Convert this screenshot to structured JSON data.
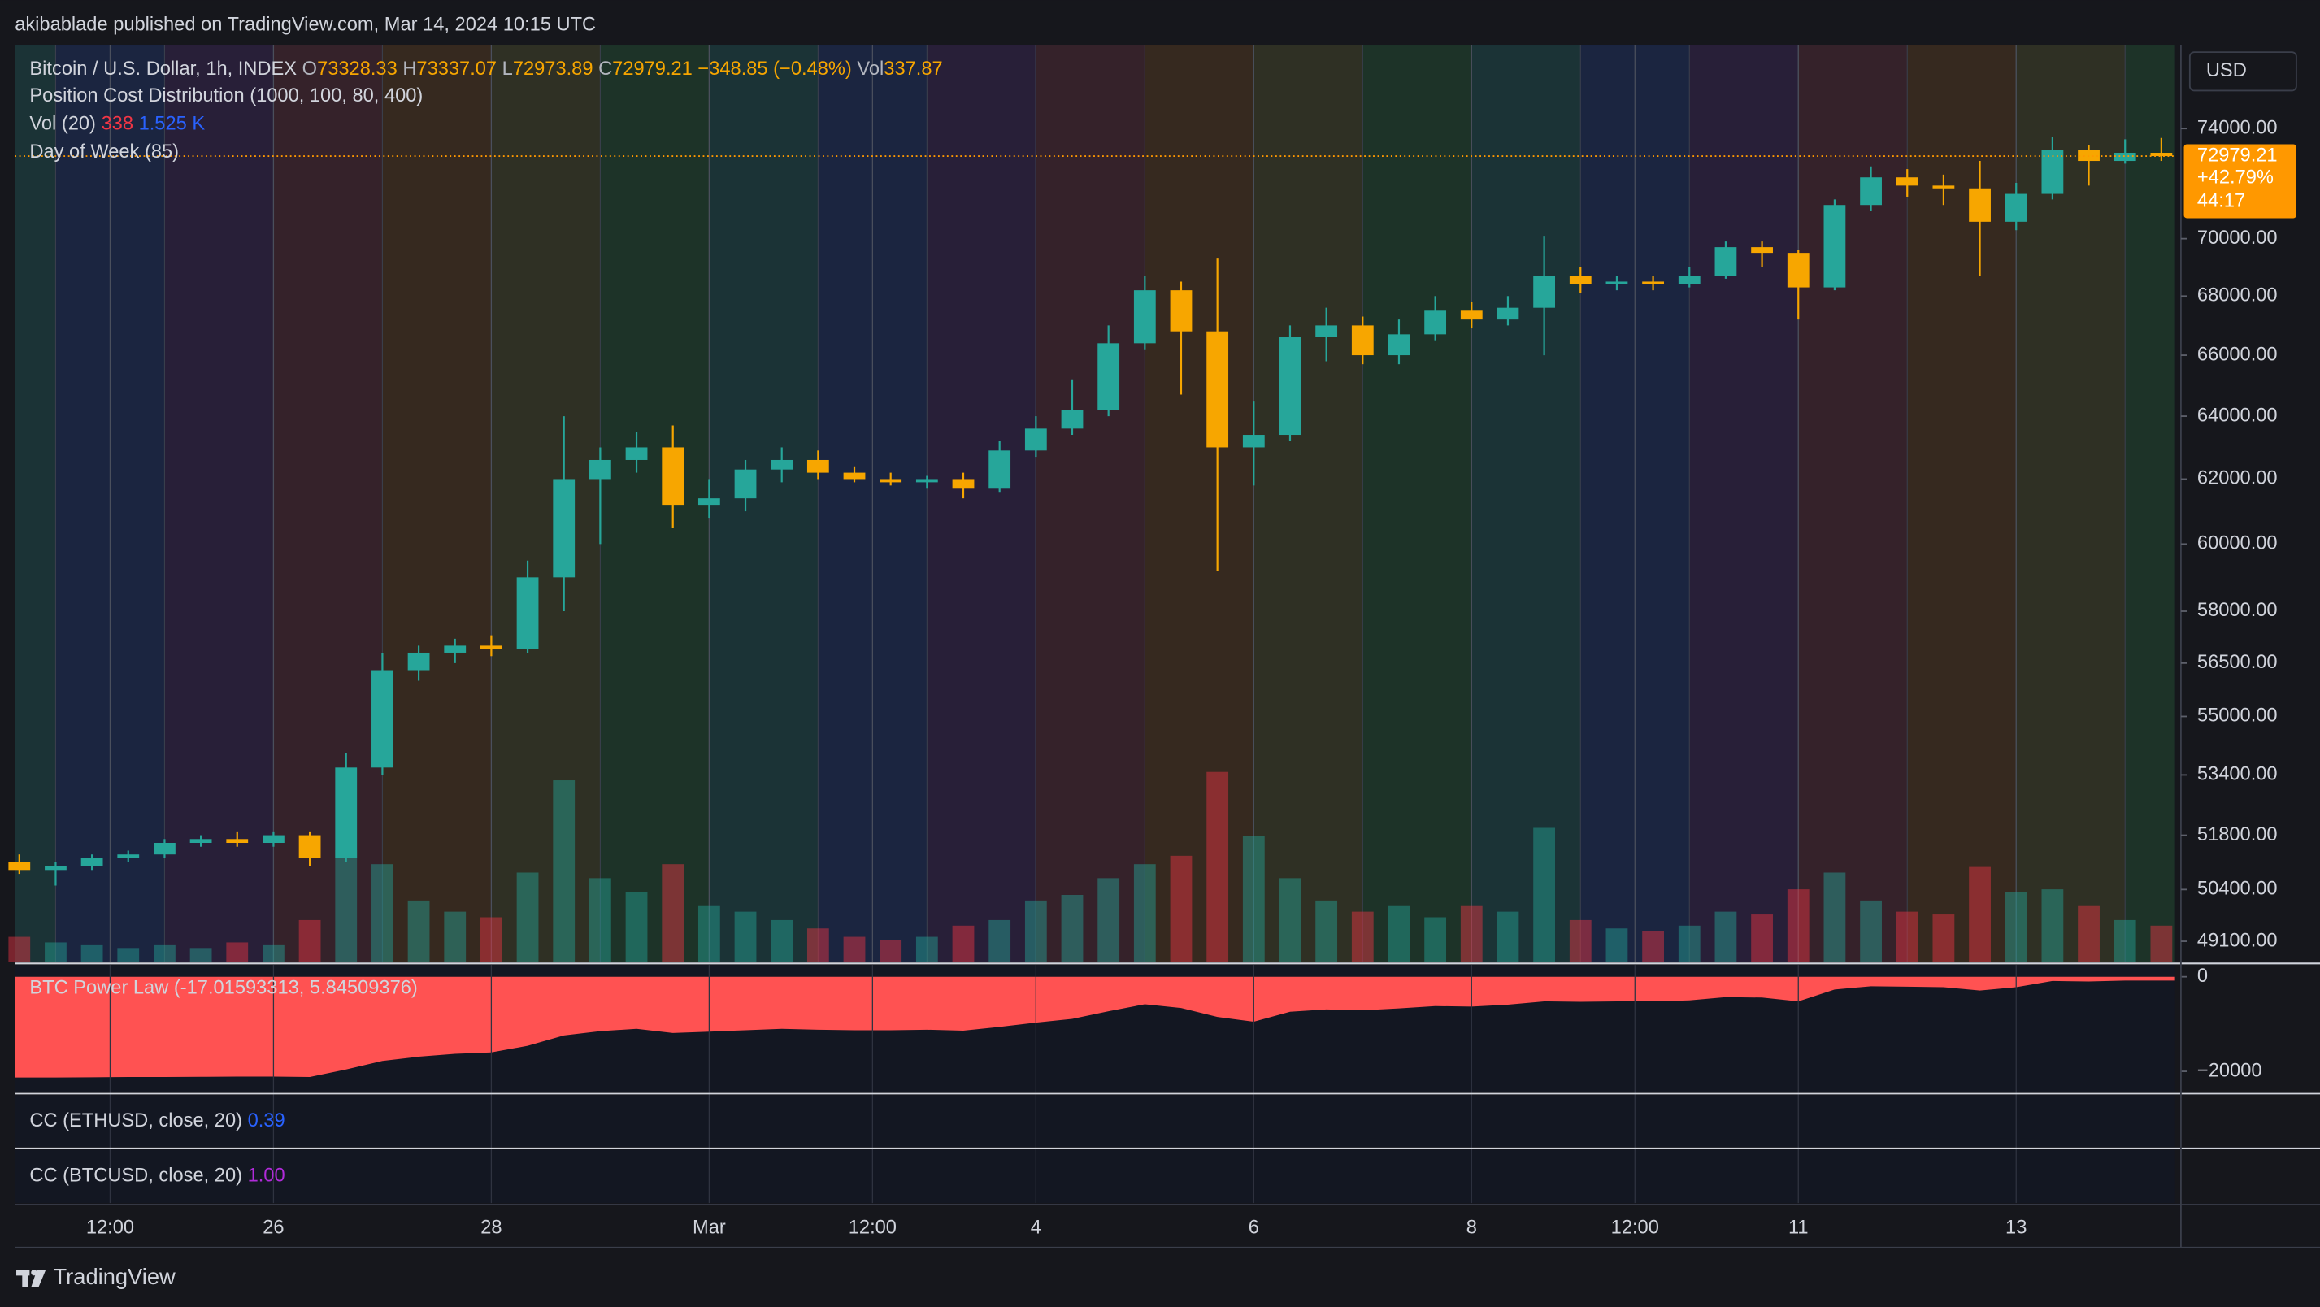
{
  "header": {
    "publisher": "akibablade published on TradingView.com, Mar 14, 2024 10:15 UTC"
  },
  "chart_data": [
    {
      "type": "candlestick",
      "symbol": "Bitcoin / U.S. Dollar, 1h, INDEX",
      "legend": {
        "o_key": "O",
        "o": "73328.33",
        "h_key": "H",
        "h": "73337.07",
        "l_key": "L",
        "l": "72973.89",
        "c_key": "C",
        "c": "72979.21",
        "change": "−348.85 (−0.48%)",
        "vol_key": "Vol",
        "vol": "337.87"
      },
      "indicators": {
        "pcd": "Position Cost Distribution (1000, 100, 80, 400)",
        "vol_name": "Vol (20)",
        "vol_last": "338",
        "vol_ma": "1.525 K",
        "dow": "Day of Week (85)"
      },
      "currency": "USD",
      "x": [
        "02-23 16:00",
        "02-24 00:00",
        "02-24 08:00",
        "02-24 16:00",
        "02-25 00:00",
        "02-25 08:00",
        "02-25 16:00",
        "02-26 00:00",
        "02-26 08:00",
        "02-26 16:00",
        "02-27 00:00",
        "02-27 08:00",
        "02-27 16:00",
        "02-28 00:00",
        "02-28 08:00",
        "02-28 16:00",
        "02-29 00:00",
        "02-29 08:00",
        "02-29 16:00",
        "03-01 00:00",
        "03-01 08:00",
        "03-01 16:00",
        "03-02 00:00",
        "03-02 08:00",
        "03-02 16:00",
        "03-03 00:00",
        "03-03 08:00",
        "03-03 16:00",
        "03-04 00:00",
        "03-04 08:00",
        "03-04 16:00",
        "03-05 00:00",
        "03-05 08:00",
        "03-05 16:00",
        "03-06 00:00",
        "03-06 08:00",
        "03-06 16:00",
        "03-07 00:00",
        "03-07 08:00",
        "03-07 16:00",
        "03-08 00:00",
        "03-08 08:00",
        "03-08 16:00",
        "03-09 00:00",
        "03-09 08:00",
        "03-09 16:00",
        "03-10 00:00",
        "03-10 08:00",
        "03-10 16:00",
        "03-11 00:00",
        "03-11 08:00",
        "03-11 16:00",
        "03-12 00:00",
        "03-12 08:00",
        "03-12 16:00",
        "03-13 00:00",
        "03-13 08:00",
        "03-13 16:00",
        "03-14 00:00",
        "03-14 08:00"
      ],
      "open": [
        51100,
        50900,
        51000,
        51200,
        51300,
        51600,
        51700,
        51600,
        51800,
        51200,
        53600,
        56300,
        56800,
        57000,
        56900,
        59000,
        62000,
        62600,
        63000,
        61200,
        61400,
        62300,
        62600,
        62200,
        62000,
        61900,
        62000,
        61700,
        62900,
        63600,
        64200,
        66400,
        68200,
        66800,
        63000,
        63400,
        66600,
        67000,
        66000,
        66700,
        67500,
        67200,
        67600,
        68700,
        68400,
        68500,
        68400,
        68700,
        69700,
        69500,
        68300,
        71200,
        72200,
        71900,
        71800,
        70600,
        71600,
        73200,
        72800,
        73100
      ],
      "high": [
        51300,
        51100,
        51300,
        51400,
        51700,
        51800,
        51900,
        51900,
        51900,
        54000,
        56800,
        57000,
        57200,
        57300,
        59500,
        64000,
        63000,
        63500,
        63700,
        62000,
        62600,
        63000,
        62900,
        62400,
        62200,
        62100,
        62200,
        63200,
        64000,
        65200,
        67000,
        68700,
        68500,
        69300,
        64500,
        67000,
        67600,
        67300,
        67200,
        68000,
        67800,
        68000,
        70100,
        69000,
        68700,
        68700,
        69000,
        69900,
        69900,
        69600,
        71400,
        72600,
        72500,
        72300,
        72800,
        72000,
        73700,
        73400,
        73600,
        73650
      ],
      "low": [
        50800,
        50500,
        50900,
        51100,
        51200,
        51500,
        51500,
        51500,
        51000,
        51100,
        53400,
        56000,
        56500,
        56700,
        56800,
        58000,
        60000,
        62200,
        60500,
        60800,
        61000,
        61900,
        62000,
        61900,
        61800,
        61700,
        61400,
        61600,
        62700,
        63400,
        64000,
        66200,
        64700,
        59200,
        61800,
        63200,
        65800,
        65700,
        65700,
        66500,
        66900,
        67000,
        66000,
        68100,
        68200,
        68200,
        68300,
        68600,
        69000,
        67200,
        68200,
        71000,
        71500,
        71200,
        68700,
        70300,
        71400,
        71900,
        72700,
        72800
      ],
      "close": [
        50900,
        51000,
        51200,
        51300,
        51600,
        51700,
        51600,
        51800,
        51200,
        53600,
        56300,
        56800,
        57000,
        56900,
        59000,
        62000,
        62600,
        63000,
        61200,
        61400,
        62300,
        62600,
        62200,
        62000,
        61900,
        62000,
        61700,
        62900,
        63600,
        64200,
        66400,
        68200,
        66800,
        63000,
        63400,
        66600,
        67000,
        66000,
        66700,
        67500,
        67200,
        67600,
        68700,
        68400,
        68500,
        68400,
        68700,
        69700,
        69500,
        68300,
        71200,
        72200,
        71900,
        71800,
        70600,
        71600,
        73200,
        72800,
        73100,
        72979.21
      ],
      "volume": [
        900,
        700,
        600,
        500,
        600,
        500,
        700,
        600,
        1500,
        4000,
        3500,
        2200,
        1800,
        1600,
        3200,
        6500,
        3000,
        2500,
        3500,
        2000,
        1800,
        1500,
        1200,
        900,
        800,
        900,
        1300,
        1500,
        2200,
        2400,
        3000,
        3500,
        3800,
        6800,
        4500,
        3000,
        2200,
        1800,
        2000,
        1600,
        2000,
        1800,
        4800,
        1500,
        1200,
        1100,
        1300,
        1800,
        1700,
        2600,
        3200,
        2200,
        1800,
        1700,
        3400,
        2500,
        2600,
        2000,
        1500,
        1300
      ],
      "volume_ylim": [
        0,
        9000
      ],
      "up_color": "#26a69a",
      "down_color": "#f7a600",
      "weekday_colors": [
        "#1b3336",
        "#1b2540",
        "#281f38",
        "#35222a",
        "#36291f",
        "#2f3024",
        "#1d3328"
      ],
      "log_scale": true,
      "xlim": [
        "02-23 15:00",
        "03-14 11:00"
      ],
      "xticks": [
        {
          "value": "02-24 12:00",
          "label": "12:00"
        },
        {
          "value": "02-26 00:00",
          "label": "26"
        },
        {
          "value": "02-28 00:00",
          "label": "28"
        },
        {
          "value": "03-01 00:00",
          "label": "Mar"
        },
        {
          "value": "03-02 12:00",
          "label": "12:00"
        },
        {
          "value": "03-04 00:00",
          "label": "4"
        },
        {
          "value": "03-06 00:00",
          "label": "6"
        },
        {
          "value": "03-08 00:00",
          "label": "8"
        },
        {
          "value": "03-09 12:00",
          "label": "12:00"
        },
        {
          "value": "03-11 00:00",
          "label": "11"
        },
        {
          "value": "03-13 00:00",
          "label": "13"
        }
      ],
      "xgrid": true,
      "ylim": [
        48590,
        77200
      ],
      "yticks": [
        {
          "value": 74000,
          "label": "74000.00"
        },
        {
          "value": 70000,
          "label": "70000.00"
        },
        {
          "value": 68000,
          "label": "68000.00"
        },
        {
          "value": 66000,
          "label": "66000.00"
        },
        {
          "value": 64000,
          "label": "64000.00"
        },
        {
          "value": 62000,
          "label": "62000.00"
        },
        {
          "value": 60000,
          "label": "60000.00"
        },
        {
          "value": 58000,
          "label": "58000.00"
        },
        {
          "value": 56500,
          "label": "56500.00"
        },
        {
          "value": 55000,
          "label": "55000.00"
        },
        {
          "value": 53400,
          "label": "53400.00"
        },
        {
          "value": 51800,
          "label": "51800.00"
        },
        {
          "value": 50400,
          "label": "50400.00"
        },
        {
          "value": 49100,
          "label": "49100.00"
        }
      ],
      "last_price": 72979.21,
      "last_change": "+42.79%",
      "countdown": "44:17",
      "last_color": "#ff9800"
    },
    {
      "type": "area",
      "title": "BTC Power Law (-17.01593313, 5.84509376)",
      "color": "#ff5252",
      "values": [
        -21300,
        -21300,
        -21250,
        -21200,
        -21200,
        -21150,
        -21100,
        -21100,
        -21200,
        -19600,
        -17800,
        -16900,
        -16300,
        -16000,
        -14600,
        -12400,
        -11500,
        -11000,
        -11900,
        -11600,
        -11300,
        -11000,
        -11200,
        -11300,
        -11300,
        -11200,
        -11400,
        -10600,
        -9700,
        -8900,
        -7300,
        -5800,
        -6600,
        -8500,
        -9500,
        -7400,
        -6900,
        -7100,
        -6700,
        -6200,
        -6300,
        -5900,
        -5200,
        -5300,
        -5200,
        -5200,
        -5000,
        -4300,
        -4400,
        -5200,
        -2700,
        -2000,
        -2100,
        -2200,
        -2900,
        -2200,
        -900,
        -1000,
        -800,
        -800
      ],
      "ylim": [
        -24400,
        2500
      ],
      "yticks": [
        0,
        {
          "value": -20000,
          "label": "−20000"
        }
      ]
    }
  ],
  "cc_eth": {
    "title": "CC (ETHUSD, close, 20)",
    "value": "0.39",
    "color": "#2962ff"
  },
  "cc_btc": {
    "title": "CC (BTCUSD, close, 20)",
    "value": "1.00",
    "color": "#b02bd9"
  },
  "footer": {
    "brand": "TradingView"
  }
}
